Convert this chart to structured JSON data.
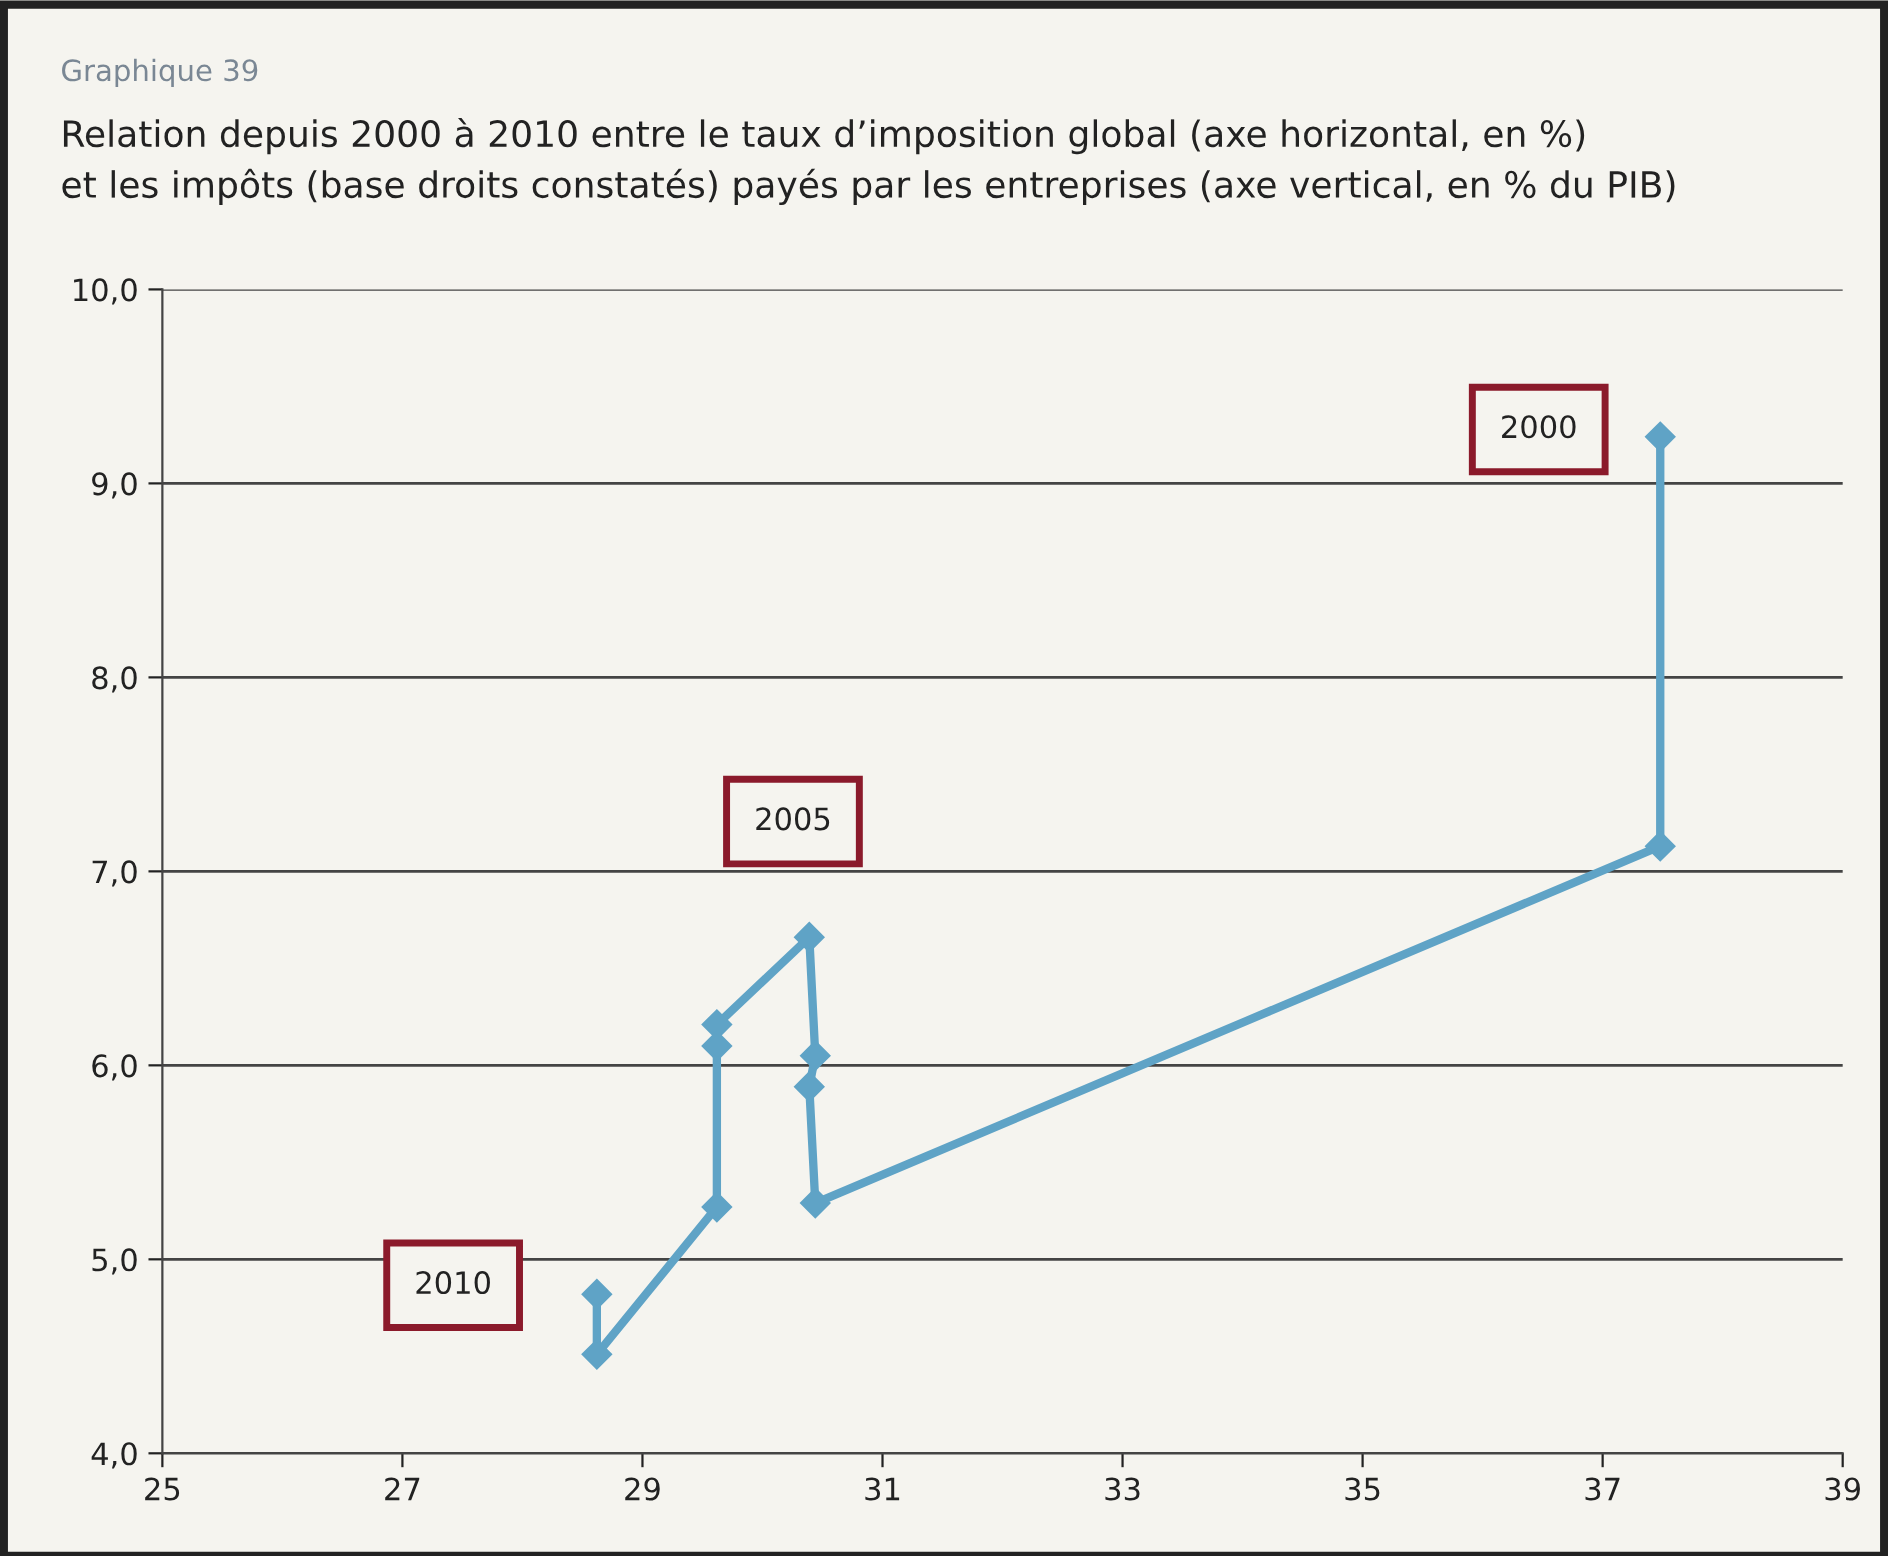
{
  "chart_data": {
    "type": "line",
    "title": "Graphique 39",
    "subtitle": "Relation depuis 2000 à 2010 entre le taux d’imposition global (axe horizontal, en %)\net les impôts (base droits constatés) payés par les entreprises (axe vertical, en % du PIB)",
    "series": [
      {
        "color": "#5fa3c6",
        "x": [
          37.48,
          37.48,
          30.44,
          30.39,
          30.44,
          30.39,
          29.62,
          29.62,
          29.62,
          28.62,
          28.62
        ],
        "values": [
          9.24,
          7.13,
          5.29,
          5.89,
          6.05,
          6.66,
          6.21,
          6.1,
          5.27,
          4.51,
          4.82
        ]
      }
    ],
    "marker": "diamond",
    "line_style": "solid",
    "annotations": [
      "2000",
      "2005",
      "2010"
    ],
    "xlim": [
      25,
      39
    ],
    "xticks": [
      25,
      27,
      29,
      31,
      33,
      35,
      37,
      39
    ],
    "ylim": [
      4,
      10
    ],
    "yticks": [
      {
        "value": 4,
        "label": "4,0"
      },
      {
        "value": 5,
        "label": "5,0"
      },
      {
        "value": 6,
        "label": "6,0"
      },
      {
        "value": 7,
        "label": "7,0"
      },
      {
        "value": 8,
        "label": "8,0"
      },
      {
        "value": 9,
        "label": "9,0"
      },
      {
        "value": 10,
        "label": "10,0"
      }
    ],
    "grid": "y"
  }
}
